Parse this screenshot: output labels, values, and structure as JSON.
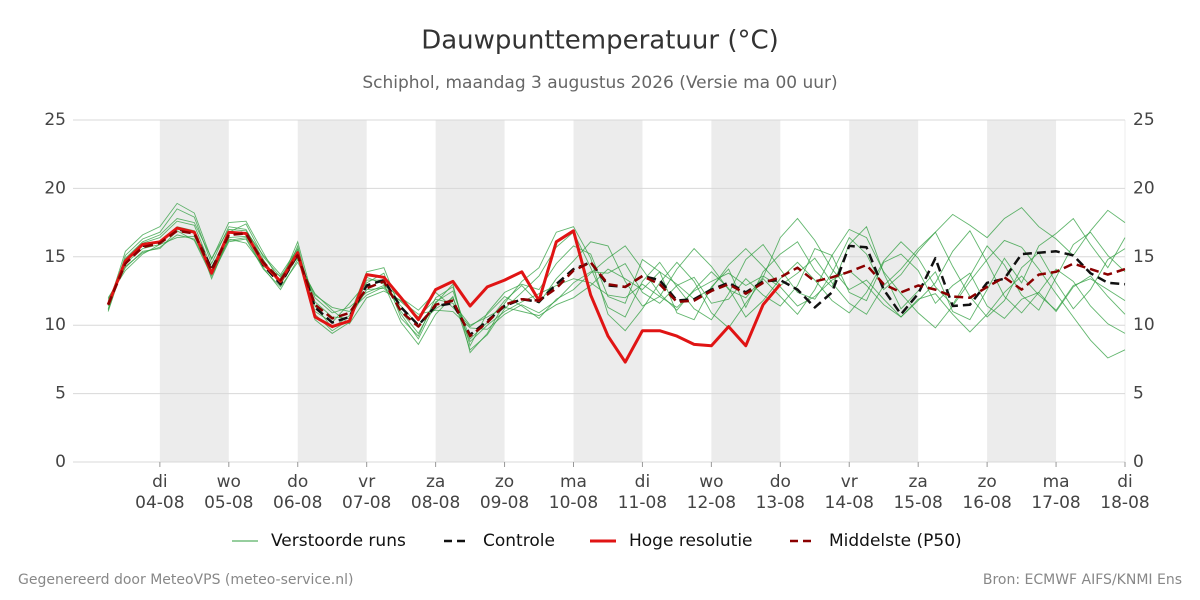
{
  "chart_data": {
    "type": "line",
    "title": "Dauwpunttemperatuur (°C)",
    "subtitle": "Schiphol, maandag  3 augustus 2026 (Versie ma 00 uur)",
    "x": [
      -0.75,
      -0.5,
      -0.25,
      0,
      0.25,
      0.5,
      0.75,
      1,
      1.25,
      1.5,
      1.75,
      2,
      2.25,
      2.5,
      2.75,
      3,
      3.25,
      3.5,
      3.75,
      4,
      4.25,
      4.5,
      4.75,
      5,
      5.25,
      5.5,
      5.75,
      6,
      6.25,
      6.5,
      6.75,
      7,
      7.25,
      7.5,
      7.75,
      8,
      8.25,
      8.5,
      8.75,
      9,
      9.25,
      9.5,
      9.75,
      10,
      10.25,
      10.5,
      10.75,
      11,
      11.25,
      11.5,
      11.75,
      12,
      12.25,
      12.5,
      12.75,
      13,
      13.25,
      13.5,
      13.75,
      14
    ],
    "xlim": [
      -1.26,
      14
    ],
    "xticks": [
      {
        "value": 0,
        "label": [
          "di",
          "04-08"
        ]
      },
      {
        "value": 1,
        "label": [
          "wo",
          "05-08"
        ]
      },
      {
        "value": 2,
        "label": [
          "do",
          "06-08"
        ]
      },
      {
        "value": 3,
        "label": [
          "vr",
          "07-08"
        ]
      },
      {
        "value": 4,
        "label": [
          "za",
          "08-08"
        ]
      },
      {
        "value": 5,
        "label": [
          "zo",
          "09-08"
        ]
      },
      {
        "value": 6,
        "label": [
          "ma",
          "10-08"
        ]
      },
      {
        "value": 7,
        "label": [
          "di",
          "11-08"
        ]
      },
      {
        "value": 8,
        "label": [
          "wo",
          "12-08"
        ]
      },
      {
        "value": 9,
        "label": [
          "do",
          "13-08"
        ]
      },
      {
        "value": 10,
        "label": [
          "vr",
          "14-08"
        ]
      },
      {
        "value": 11,
        "label": [
          "za",
          "15-08"
        ]
      },
      {
        "value": 12,
        "label": [
          "zo",
          "16-08"
        ]
      },
      {
        "value": 13,
        "label": [
          "ma",
          "17-08"
        ]
      },
      {
        "value": 14,
        "label": [
          "di",
          "18-08"
        ]
      }
    ],
    "ylim": [
      0,
      25
    ],
    "yticks": [
      0,
      5,
      10,
      15,
      20,
      25
    ],
    "y2lim": [
      0,
      25
    ],
    "y2ticks": [
      0,
      5,
      10,
      15,
      20,
      25
    ],
    "grid": true,
    "legend": "bottom",
    "ensemble": {
      "name": "Verstoorde runs",
      "color": "#2e9e3e",
      "members": [
        [
          11.2,
          15.1,
          16.3,
          16.8,
          18.5,
          17.9,
          14.5,
          17.2,
          17.0,
          14.8,
          12.9,
          15.8,
          11.0,
          10.2,
          11.6,
          13.1,
          13.8,
          10.5,
          9.2,
          12.0,
          12.8,
          8.5,
          10.9,
          12.4,
          13.0,
          12.6,
          14.5,
          15.8,
          15.2,
          12.1,
          11.6,
          14.8,
          13.9,
          10.9,
          10.4,
          12.8,
          14.1,
          11.3,
          13.9,
          15.2,
          16.1,
          14.0,
          12.8,
          15.9,
          17.2,
          13.8,
          11.2,
          12.5,
          13.9,
          11.0,
          10.4,
          12.6,
          14.9,
          13.1,
          15.8,
          16.7,
          17.8,
          15.9,
          14.2,
          16.4
        ],
        [
          11.8,
          14.2,
          15.4,
          15.6,
          16.9,
          16.2,
          13.6,
          16.1,
          16.3,
          14.1,
          12.8,
          14.6,
          12.3,
          11.1,
          10.1,
          12.0,
          12.5,
          11.8,
          10.8,
          11.1,
          11.0,
          9.8,
          9.7,
          10.8,
          11.5,
          10.9,
          11.8,
          13.1,
          13.9,
          13.8,
          14.5,
          12.4,
          11.6,
          12.9,
          13.5,
          11.6,
          11.9,
          13.4,
          12.2,
          11.4,
          12.9,
          15.6,
          15.1,
          12.4,
          11.8,
          14.6,
          15.2,
          14.0,
          11.6,
          12.9,
          13.8,
          11.4,
          10.5,
          11.9,
          12.4,
          11.0,
          12.8,
          13.6,
          12.1,
          10.8
        ],
        [
          11.0,
          14.8,
          16.0,
          16.4,
          17.6,
          17.3,
          14.2,
          16.8,
          17.4,
          15.0,
          13.5,
          15.5,
          10.8,
          9.6,
          10.4,
          13.5,
          13.0,
          10.2,
          8.6,
          10.8,
          12.1,
          8.2,
          9.3,
          11.2,
          12.4,
          13.6,
          15.7,
          16.8,
          14.2,
          11.3,
          10.6,
          13.2,
          14.6,
          12.8,
          11.2,
          10.4,
          12.3,
          14.8,
          15.9,
          14.1,
          12.4,
          11.9,
          13.8,
          16.4,
          15.2,
          12.6,
          13.7,
          15.4,
          16.8,
          14.3,
          12.1,
          10.6,
          11.8,
          14.2,
          15.3,
          13.1,
          11.2,
          12.6,
          14.8,
          15.6
        ],
        [
          12.0,
          14.0,
          15.2,
          15.9,
          16.4,
          16.5,
          13.9,
          16.3,
          16.0,
          14.3,
          13.6,
          14.9,
          12.0,
          10.9,
          11.3,
          12.4,
          12.9,
          12.0,
          11.1,
          12.4,
          11.3,
          9.9,
          10.8,
          12.1,
          11.4,
          10.5,
          11.9,
          12.6,
          13.8,
          14.9,
          15.8,
          14.1,
          12.3,
          11.1,
          12.6,
          13.9,
          12.7,
          10.6,
          11.8,
          13.4,
          14.6,
          13.3,
          11.8,
          10.9,
          12.4,
          14.7,
          16.1,
          14.9,
          12.8,
          11.5,
          13.6,
          15.8,
          14.4,
          12.2,
          11.1,
          13.5,
          15.9,
          16.8,
          15.1,
          13.9
        ],
        [
          11.4,
          15.4,
          16.6,
          17.2,
          18.9,
          18.2,
          14.8,
          17.5,
          17.6,
          15.3,
          13.1,
          16.1,
          11.4,
          9.8,
          10.7,
          13.9,
          14.2,
          11.0,
          9.4,
          11.7,
          12.5,
          9.0,
          10.2,
          11.8,
          12.9,
          11.6,
          13.4,
          14.7,
          16.1,
          15.8,
          13.2,
          11.4,
          12.1,
          14.1,
          15.6,
          14.3,
          12.6,
          12.0,
          13.5,
          16.4,
          17.8,
          16.2,
          14.1,
          12.6,
          13.3,
          11.9,
          10.6,
          11.8,
          13.1,
          15.4,
          16.9,
          14.6,
          12.1,
          10.9,
          12.4,
          14.1,
          13.2,
          11.4,
          10.1,
          9.4
        ],
        [
          11.6,
          14.5,
          15.6,
          15.9,
          17.2,
          16.9,
          13.4,
          16.4,
          16.5,
          14.7,
          13.0,
          15.0,
          11.7,
          10.6,
          10.5,
          12.6,
          12.7,
          11.4,
          10.0,
          11.2,
          12.0,
          8.8,
          10.0,
          11.0,
          11.7,
          12.3,
          12.9,
          13.4,
          13.1,
          12.2,
          12.0,
          13.0,
          12.1,
          11.3,
          12.5,
          13.2,
          13.8,
          12.9,
          13.6,
          12.8,
          11.4,
          12.1,
          13.3,
          14.0,
          12.9,
          11.5,
          10.6,
          11.9,
          12.3,
          10.8,
          9.5,
          10.8,
          12.4,
          13.6,
          12.2,
          11.1,
          12.9,
          13.4,
          12.6,
          11.8
        ],
        [
          11.1,
          14.9,
          16.1,
          16.6,
          17.8,
          17.5,
          14.9,
          17.0,
          16.9,
          15.1,
          13.7,
          15.6,
          10.4,
          9.4,
          10.2,
          13.3,
          13.3,
          10.8,
          9.0,
          11.6,
          13.0,
          8.0,
          9.4,
          11.6,
          13.2,
          14.2,
          16.8,
          17.2,
          14.9,
          10.8,
          9.6,
          11.2,
          13.1,
          14.6,
          13.2,
          10.9,
          9.8,
          11.6,
          13.4,
          12.1,
          10.8,
          12.6,
          15.1,
          17.0,
          16.4,
          13.9,
          12.3,
          10.9,
          9.8,
          11.4,
          13.2,
          14.8,
          16.2,
          15.7,
          14.1,
          12.3,
          10.6,
          8.9,
          7.6,
          8.2
        ],
        [
          11.9,
          14.3,
          15.3,
          15.7,
          16.6,
          16.3,
          13.8,
          16.2,
          16.4,
          14.2,
          12.6,
          14.8,
          12.2,
          11.3,
          11.0,
          12.2,
          12.8,
          11.7,
          10.6,
          11.9,
          11.6,
          10.0,
          10.6,
          11.3,
          11.0,
          10.7,
          11.5,
          12.0,
          12.9,
          14.1,
          13.4,
          12.6,
          13.9,
          13.0,
          11.9,
          12.7,
          14.4,
          15.6,
          14.3,
          12.9,
          13.8,
          14.9,
          13.1,
          11.6,
          10.8,
          12.9,
          14.1,
          15.6,
          16.8,
          18.1,
          17.3,
          16.4,
          17.8,
          18.6,
          17.2,
          16.3,
          15.1,
          16.9,
          18.4,
          17.5
        ]
      ]
    },
    "series": [
      {
        "name": "Controle",
        "color": "#111111",
        "dash": true,
        "values": [
          11.5,
          14.7,
          15.8,
          16.1,
          17.0,
          16.8,
          14.1,
          16.6,
          16.8,
          14.4,
          13.0,
          15.2,
          11.3,
          10.2,
          10.6,
          12.9,
          13.3,
          11.3,
          10.0,
          11.4,
          11.6,
          9.3,
          10.3,
          11.4,
          11.9,
          11.7,
          13.0,
          14.1,
          14.6,
          12.9,
          12.8,
          13.6,
          13.3,
          11.8,
          11.9,
          12.6,
          13.1,
          12.4,
          13.2,
          13.3,
          12.6,
          11.3,
          12.4,
          15.8,
          15.7,
          12.6,
          10.8,
          12.3,
          14.9,
          11.4,
          11.5,
          13.1,
          13.4,
          15.2,
          15.3,
          15.4,
          15.1,
          13.8,
          13.1,
          13.0
        ]
      },
      {
        "name": "Hoge resolutie",
        "color": "#e01414",
        "dash": false,
        "values": [
          11.5,
          14.7,
          15.9,
          16.1,
          17.1,
          16.8,
          13.8,
          16.8,
          16.7,
          14.5,
          13.2,
          15.3,
          10.6,
          9.9,
          10.3,
          13.7,
          13.5,
          12.0,
          10.4,
          12.6,
          13.2,
          11.4,
          12.8,
          13.3,
          13.9,
          11.8,
          16.1,
          16.9,
          12.2,
          9.2,
          7.3,
          9.6,
          9.6,
          9.2,
          8.6,
          8.5,
          9.9,
          8.5,
          11.5,
          13.0,
          null,
          null,
          null,
          null,
          null,
          null,
          null,
          null,
          null,
          null,
          null,
          null,
          null,
          null,
          null,
          null,
          null,
          null,
          null,
          null
        ]
      },
      {
        "name": "Middelste (P50)",
        "color": "#8b0000",
        "dash": true,
        "values": [
          11.5,
          14.5,
          15.7,
          16.0,
          16.9,
          16.7,
          14.0,
          16.6,
          16.7,
          14.6,
          13.3,
          15.1,
          11.5,
          10.5,
          10.9,
          12.7,
          13.2,
          11.0,
          9.9,
          11.5,
          11.8,
          9.2,
          10.2,
          11.5,
          11.9,
          11.8,
          12.7,
          14.0,
          14.6,
          13.0,
          12.8,
          13.6,
          13.0,
          11.7,
          11.8,
          12.5,
          13.0,
          12.3,
          13.1,
          13.5,
          14.2,
          13.2,
          13.5,
          13.9,
          14.4,
          13.0,
          12.4,
          12.9,
          12.6,
          12.1,
          12.0,
          12.8,
          13.5,
          12.6,
          13.7,
          13.9,
          14.5,
          14.1,
          13.7,
          14.1
        ]
      }
    ]
  },
  "footer_left": "Gegenereerd door MeteoVPS (meteo-service.nl)",
  "footer_right": "Bron: ECMWF AIFS/KNMI Ens"
}
